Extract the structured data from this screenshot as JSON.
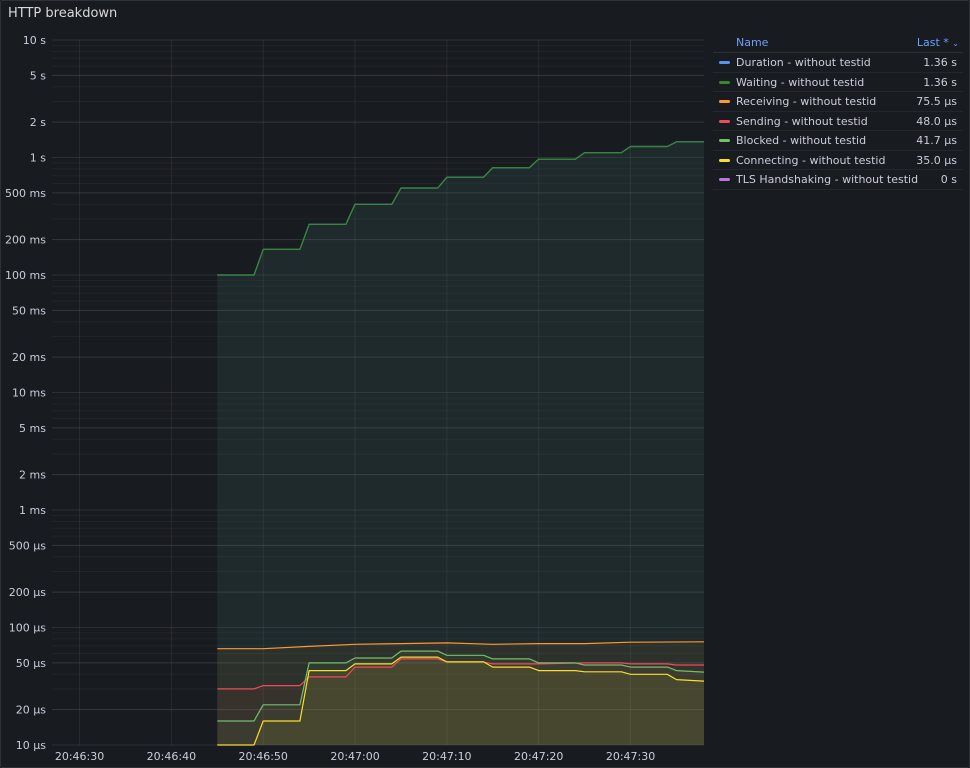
{
  "panel": {
    "title": "HTTP breakdown"
  },
  "legend": {
    "header_name": "Name",
    "header_value": "Last *",
    "header_sort_icon": "chevron-down-icon",
    "rows": [
      {
        "name": "Duration - without testid",
        "value": "1.36 s",
        "color": "#5794f2"
      },
      {
        "name": "Waiting - without testid",
        "value": "1.36 s",
        "color": "#37872d"
      },
      {
        "name": "Receiving - without testid",
        "value": "75.5 µs",
        "color": "#ff9830"
      },
      {
        "name": "Sending - without testid",
        "value": "48.0 µs",
        "color": "#f2495c"
      },
      {
        "name": "Blocked - without testid",
        "value": "41.7 µs",
        "color": "#73bf69"
      },
      {
        "name": "Connecting - without testid",
        "value": "35.0 µs",
        "color": "#fade2a"
      },
      {
        "name": "TLS Handshaking - without testid",
        "value": "0 s",
        "color": "#b877d9"
      }
    ]
  },
  "chart_data": {
    "type": "line",
    "title": "HTTP breakdown",
    "y_scale": "log10",
    "y_unit": "seconds",
    "ylim": [
      1e-05,
      10
    ],
    "y_ticks": [
      {
        "v": 10,
        "label": "10 s"
      },
      {
        "v": 5,
        "label": "5 s"
      },
      {
        "v": 2,
        "label": "2 s"
      },
      {
        "v": 1,
        "label": "1 s"
      },
      {
        "v": 0.5,
        "label": "500 ms"
      },
      {
        "v": 0.2,
        "label": "200 ms"
      },
      {
        "v": 0.1,
        "label": "100 ms"
      },
      {
        "v": 0.05,
        "label": "50 ms"
      },
      {
        "v": 0.02,
        "label": "20 ms"
      },
      {
        "v": 0.01,
        "label": "10 ms"
      },
      {
        "v": 0.005,
        "label": "5 ms"
      },
      {
        "v": 0.002,
        "label": "2 ms"
      },
      {
        "v": 0.001,
        "label": "1 ms"
      },
      {
        "v": 0.0005,
        "label": "500 µs"
      },
      {
        "v": 0.0002,
        "label": "200 µs"
      },
      {
        "v": 0.0001,
        "label": "100 µs"
      },
      {
        "v": 5e-05,
        "label": "50 µs"
      },
      {
        "v": 2e-05,
        "label": "20 µs"
      },
      {
        "v": 1e-05,
        "label": "10 µs"
      }
    ],
    "x_unit": "time",
    "xlim": [
      "20:46:27",
      "20:47:38"
    ],
    "x_ticks": [
      "20:46:30",
      "20:46:40",
      "20:46:50",
      "20:47:00",
      "20:47:10",
      "20:47:20",
      "20:47:30"
    ],
    "grid": true,
    "legend_position": "right",
    "series": [
      {
        "name": "Duration - without testid",
        "color": "#5794f2",
        "points": [
          [
            "20:46:45",
            0.1
          ],
          [
            "20:46:49",
            0.1
          ],
          [
            "20:46:50",
            0.165
          ],
          [
            "20:46:54",
            0.165
          ],
          [
            "20:46:55",
            0.27
          ],
          [
            "20:46:59",
            0.27
          ],
          [
            "20:47:00",
            0.4
          ],
          [
            "20:47:04",
            0.4
          ],
          [
            "20:47:05",
            0.55
          ],
          [
            "20:47:09",
            0.55
          ],
          [
            "20:47:10",
            0.68
          ],
          [
            "20:47:14",
            0.68
          ],
          [
            "20:47:15",
            0.82
          ],
          [
            "20:47:19",
            0.82
          ],
          [
            "20:47:20",
            0.97
          ],
          [
            "20:47:24",
            0.97
          ],
          [
            "20:47:25",
            1.1
          ],
          [
            "20:47:29",
            1.1
          ],
          [
            "20:47:30",
            1.24
          ],
          [
            "20:47:34",
            1.24
          ],
          [
            "20:47:35",
            1.36
          ],
          [
            "20:47:38",
            1.36
          ]
        ]
      },
      {
        "name": "Waiting - without testid",
        "color": "#37872d",
        "points": [
          [
            "20:46:45",
            0.1
          ],
          [
            "20:46:49",
            0.1
          ],
          [
            "20:46:50",
            0.165
          ],
          [
            "20:46:54",
            0.165
          ],
          [
            "20:46:55",
            0.27
          ],
          [
            "20:46:59",
            0.27
          ],
          [
            "20:47:00",
            0.4
          ],
          [
            "20:47:04",
            0.4
          ],
          [
            "20:47:05",
            0.55
          ],
          [
            "20:47:09",
            0.55
          ],
          [
            "20:47:10",
            0.68
          ],
          [
            "20:47:14",
            0.68
          ],
          [
            "20:47:15",
            0.82
          ],
          [
            "20:47:19",
            0.82
          ],
          [
            "20:47:20",
            0.97
          ],
          [
            "20:47:24",
            0.97
          ],
          [
            "20:47:25",
            1.1
          ],
          [
            "20:47:29",
            1.1
          ],
          [
            "20:47:30",
            1.24
          ],
          [
            "20:47:34",
            1.24
          ],
          [
            "20:47:35",
            1.36
          ],
          [
            "20:47:38",
            1.36
          ]
        ]
      },
      {
        "name": "Receiving - without testid",
        "color": "#ff9830",
        "points": [
          [
            "20:46:45",
            6.6e-05
          ],
          [
            "20:46:50",
            6.6e-05
          ],
          [
            "20:46:55",
            6.9e-05
          ],
          [
            "20:47:00",
            7.2e-05
          ],
          [
            "20:47:05",
            7.3e-05
          ],
          [
            "20:47:10",
            7.4e-05
          ],
          [
            "20:47:15",
            7.2e-05
          ],
          [
            "20:47:20",
            7.3e-05
          ],
          [
            "20:47:25",
            7.3e-05
          ],
          [
            "20:47:30",
            7.5e-05
          ],
          [
            "20:47:38",
            7.55e-05
          ]
        ]
      },
      {
        "name": "Sending - without testid",
        "color": "#f2495c",
        "points": [
          [
            "20:46:45",
            3e-05
          ],
          [
            "20:46:49",
            3e-05
          ],
          [
            "20:46:50",
            3.2e-05
          ],
          [
            "20:46:54",
            3.2e-05
          ],
          [
            "20:46:55",
            3.8e-05
          ],
          [
            "20:46:59",
            3.8e-05
          ],
          [
            "20:47:00",
            4.6e-05
          ],
          [
            "20:47:04",
            4.6e-05
          ],
          [
            "20:47:05",
            5.4e-05
          ],
          [
            "20:47:09",
            5.4e-05
          ],
          [
            "20:47:10",
            5.1e-05
          ],
          [
            "20:47:14",
            5.1e-05
          ],
          [
            "20:47:15",
            4.9e-05
          ],
          [
            "20:47:19",
            4.9e-05
          ],
          [
            "20:47:20",
            4.9e-05
          ],
          [
            "20:47:25",
            5e-05
          ],
          [
            "20:47:29",
            5e-05
          ],
          [
            "20:47:30",
            4.9e-05
          ],
          [
            "20:47:34",
            4.9e-05
          ],
          [
            "20:47:35",
            4.8e-05
          ],
          [
            "20:47:38",
            4.8e-05
          ]
        ]
      },
      {
        "name": "Blocked - without testid",
        "color": "#73bf69",
        "points": [
          [
            "20:46:45",
            1.6e-05
          ],
          [
            "20:46:49",
            1.6e-05
          ],
          [
            "20:46:50",
            2.2e-05
          ],
          [
            "20:46:54",
            2.2e-05
          ],
          [
            "20:46:55",
            5e-05
          ],
          [
            "20:46:59",
            5e-05
          ],
          [
            "20:47:00",
            5.5e-05
          ],
          [
            "20:47:04",
            5.5e-05
          ],
          [
            "20:47:05",
            6.3e-05
          ],
          [
            "20:47:09",
            6.3e-05
          ],
          [
            "20:47:10",
            5.8e-05
          ],
          [
            "20:47:14",
            5.8e-05
          ],
          [
            "20:47:15",
            5.4e-05
          ],
          [
            "20:47:19",
            5.4e-05
          ],
          [
            "20:47:20",
            5e-05
          ],
          [
            "20:47:24",
            5e-05
          ],
          [
            "20:47:25",
            4.8e-05
          ],
          [
            "20:47:29",
            4.8e-05
          ],
          [
            "20:47:30",
            4.6e-05
          ],
          [
            "20:47:34",
            4.6e-05
          ],
          [
            "20:47:35",
            4.3e-05
          ],
          [
            "20:47:38",
            4.17e-05
          ]
        ]
      },
      {
        "name": "Connecting - without testid",
        "color": "#fade2a",
        "points": [
          [
            "20:46:45",
            1e-05
          ],
          [
            "20:46:49",
            1e-05
          ],
          [
            "20:46:50",
            1.6e-05
          ],
          [
            "20:46:54",
            1.6e-05
          ],
          [
            "20:46:55",
            4.3e-05
          ],
          [
            "20:46:59",
            4.3e-05
          ],
          [
            "20:47:00",
            4.9e-05
          ],
          [
            "20:47:04",
            4.9e-05
          ],
          [
            "20:47:05",
            5.6e-05
          ],
          [
            "20:47:09",
            5.6e-05
          ],
          [
            "20:47:10",
            5.1e-05
          ],
          [
            "20:47:14",
            5.1e-05
          ],
          [
            "20:47:15",
            4.6e-05
          ],
          [
            "20:47:19",
            4.6e-05
          ],
          [
            "20:47:20",
            4.3e-05
          ],
          [
            "20:47:24",
            4.3e-05
          ],
          [
            "20:47:25",
            4.2e-05
          ],
          [
            "20:47:29",
            4.2e-05
          ],
          [
            "20:47:30",
            4e-05
          ],
          [
            "20:47:34",
            4e-05
          ],
          [
            "20:47:35",
            3.6e-05
          ],
          [
            "20:47:38",
            3.5e-05
          ]
        ]
      },
      {
        "name": "TLS Handshaking - without testid",
        "color": "#b877d9",
        "points": []
      }
    ]
  }
}
